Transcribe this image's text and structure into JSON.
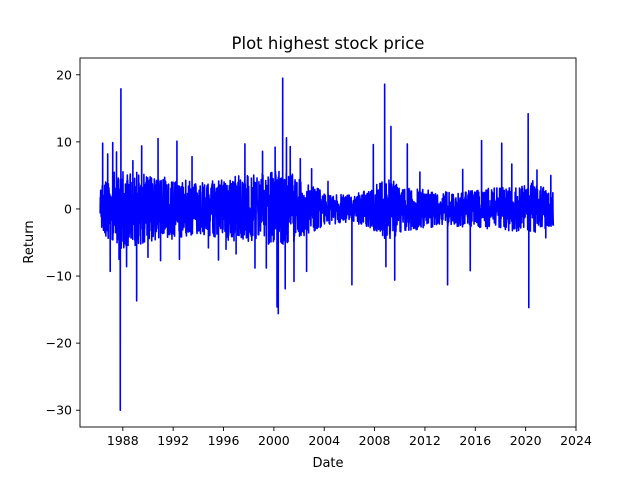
{
  "chart_data": {
    "type": "line",
    "title": "Plot highest stock price",
    "xlabel": "Date",
    "ylabel": "Return",
    "xlim": [
      1984.6,
      2024.0
    ],
    "ylim": [
      -32.5,
      22.5
    ],
    "x_ticks": [
      1988,
      1992,
      1996,
      2000,
      2004,
      2008,
      2012,
      2016,
      2020,
      2024
    ],
    "x_tick_labels": [
      "1988",
      "1992",
      "1996",
      "2000",
      "2004",
      "2008",
      "2012",
      "2016",
      "2020",
      "2024"
    ],
    "y_ticks": [
      -30,
      -20,
      -10,
      0,
      10,
      20
    ],
    "y_tick_labels": [
      "−30",
      "−20",
      "−10",
      "0",
      "10",
      "20"
    ],
    "grid": false,
    "series": [
      {
        "name": "Return",
        "color": "#0000ff",
        "x_range": [
          1986.2,
          2022.2
        ],
        "envelope": {
          "x": [
            1986.2,
            1987.0,
            1987.6,
            1987.9,
            1988.5,
            1990.0,
            1992.0,
            1994.0,
            1996.0,
            1998.0,
            2000.0,
            2001.5,
            2003.0,
            2004.5,
            2006.0,
            2007.5,
            2009.0,
            2010.5,
            2012.0,
            2014.0,
            2016.0,
            2018.0,
            2019.9,
            2020.5,
            2021.0,
            2022.2
          ],
          "upper": [
            3.5,
            4.5,
            5.0,
            5.5,
            5.0,
            4.5,
            4.0,
            3.5,
            4.0,
            4.5,
            5.0,
            4.5,
            3.0,
            2.0,
            1.8,
            2.5,
            4.0,
            3.0,
            2.5,
            2.2,
            2.5,
            2.8,
            3.0,
            4.0,
            3.0,
            2.5
          ],
          "lower": [
            -3.0,
            -4.5,
            -5.0,
            -5.5,
            -5.0,
            -4.5,
            -4.0,
            -3.5,
            -4.0,
            -4.5,
            -5.0,
            -4.5,
            -3.0,
            -2.0,
            -1.8,
            -2.5,
            -4.0,
            -3.0,
            -2.5,
            -2.2,
            -2.5,
            -2.8,
            -3.0,
            -4.0,
            -3.0,
            -2.5
          ]
        },
        "peaks": [
          {
            "x": 1986.4,
            "y": 9.8
          },
          {
            "x": 1986.8,
            "y": 8.2
          },
          {
            "x": 1987.2,
            "y": 9.9
          },
          {
            "x": 1987.5,
            "y": 8.5
          },
          {
            "x": 1987.85,
            "y": 17.9
          },
          {
            "x": 1987.8,
            "y": -30.0
          },
          {
            "x": 1987.0,
            "y": -9.3
          },
          {
            "x": 1987.7,
            "y": -7.5
          },
          {
            "x": 1988.3,
            "y": -8.6
          },
          {
            "x": 1988.8,
            "y": 7.2
          },
          {
            "x": 1989.1,
            "y": -13.7
          },
          {
            "x": 1989.5,
            "y": 9.4
          },
          {
            "x": 1990.0,
            "y": -7.2
          },
          {
            "x": 1990.8,
            "y": 10.5
          },
          {
            "x": 1991.0,
            "y": -7.7
          },
          {
            "x": 1992.3,
            "y": 10.1
          },
          {
            "x": 1992.5,
            "y": -7.5
          },
          {
            "x": 1993.5,
            "y": 7.8
          },
          {
            "x": 1994.8,
            "y": -5.8
          },
          {
            "x": 1995.6,
            "y": -7.6
          },
          {
            "x": 1996.2,
            "y": -6.0
          },
          {
            "x": 1997.0,
            "y": -6.7
          },
          {
            "x": 1997.7,
            "y": 9.7
          },
          {
            "x": 1998.5,
            "y": -8.8
          },
          {
            "x": 1999.1,
            "y": 8.6
          },
          {
            "x": 1999.4,
            "y": -8.8
          },
          {
            "x": 2000.1,
            "y": 9.2
          },
          {
            "x": 2000.25,
            "y": -14.6
          },
          {
            "x": 2000.35,
            "y": -15.6
          },
          {
            "x": 2000.7,
            "y": 19.5
          },
          {
            "x": 2000.9,
            "y": -11.9
          },
          {
            "x": 2001.0,
            "y": 10.6
          },
          {
            "x": 2001.3,
            "y": 9.3
          },
          {
            "x": 2001.6,
            "y": -10.8
          },
          {
            "x": 2002.1,
            "y": 7.5
          },
          {
            "x": 2002.6,
            "y": -9.3
          },
          {
            "x": 2003.0,
            "y": 6.0
          },
          {
            "x": 2004.3,
            "y": 4.1
          },
          {
            "x": 2006.2,
            "y": -11.3
          },
          {
            "x": 2007.9,
            "y": 9.6
          },
          {
            "x": 2008.8,
            "y": 18.6
          },
          {
            "x": 2008.9,
            "y": -8.6
          },
          {
            "x": 2009.3,
            "y": 12.3
          },
          {
            "x": 2009.6,
            "y": -10.6
          },
          {
            "x": 2010.6,
            "y": 9.7
          },
          {
            "x": 2011.6,
            "y": 5.5
          },
          {
            "x": 2013.8,
            "y": -11.3
          },
          {
            "x": 2015.0,
            "y": 5.9
          },
          {
            "x": 2015.6,
            "y": -9.2
          },
          {
            "x": 2016.5,
            "y": 10.2
          },
          {
            "x": 2018.1,
            "y": 9.8
          },
          {
            "x": 2018.9,
            "y": 6.7
          },
          {
            "x": 2020.2,
            "y": 14.2
          },
          {
            "x": 2020.25,
            "y": -14.7
          },
          {
            "x": 2020.9,
            "y": 5.8
          },
          {
            "x": 2021.6,
            "y": -4.3
          },
          {
            "x": 2022.0,
            "y": 5.0
          }
        ]
      }
    ]
  }
}
